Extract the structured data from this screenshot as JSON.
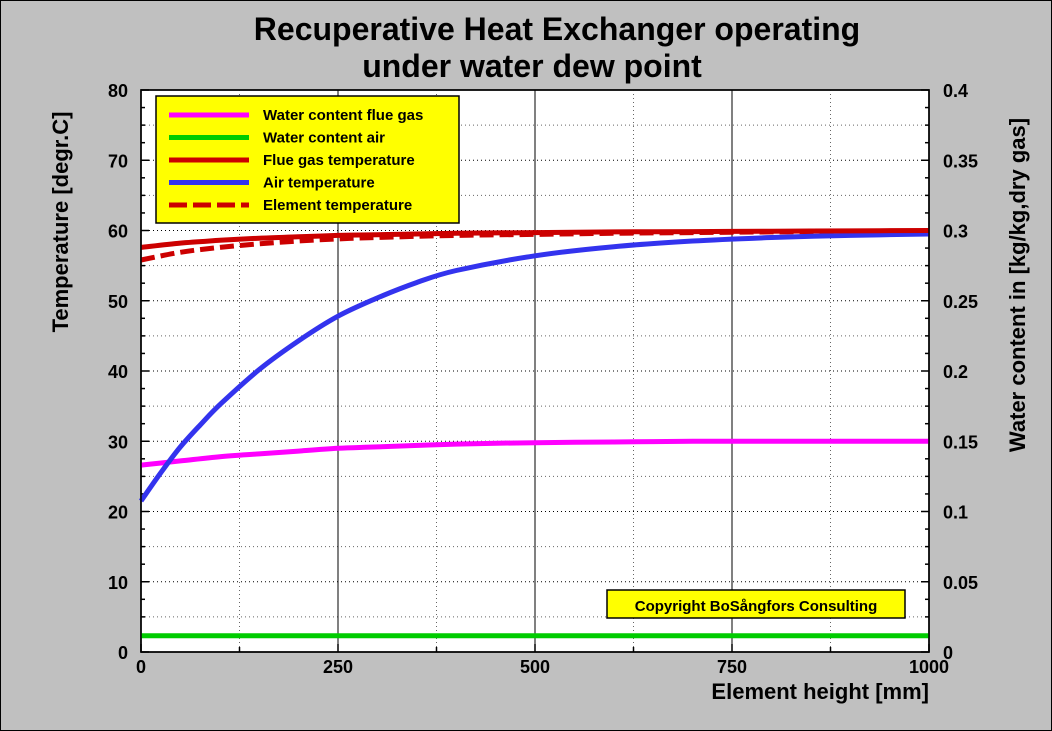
{
  "chart_data": {
    "type": "line",
    "title_line1": "Recuperative Heat Exchanger operating",
    "title_line2": "under water dew point",
    "xlabel": "Element height [mm]",
    "ylabel_left": "Temperature [degr.C]",
    "ylabel_right": "Water content in [kg/kg,dry gas]",
    "xlim": [
      0,
      1000
    ],
    "ylim_left": [
      0,
      80
    ],
    "ylim_right": [
      0,
      0.4
    ],
    "x_ticks": [
      "0",
      "250",
      "500",
      "750",
      "1000"
    ],
    "y_ticks_left": [
      "0",
      "10",
      "20",
      "30",
      "40",
      "50",
      "60",
      "70",
      "80"
    ],
    "y_ticks_right": [
      "0",
      "0.05",
      "0.1",
      "0.15",
      "0.2",
      "0.25",
      "0.3",
      "0.35",
      "0.4"
    ],
    "grid": true,
    "legend_position": "top-left",
    "copyright": "Copyright BoSångfors Consulting",
    "series": [
      {
        "name": "Water content flue gas",
        "axis": "right",
        "color": "#ff00ff",
        "style": "solid",
        "x": [
          0,
          50,
          100,
          150,
          200,
          250,
          300,
          400,
          500,
          600,
          700,
          800,
          900,
          1000
        ],
        "y": [
          0.133,
          0.136,
          0.139,
          0.141,
          0.143,
          0.145,
          0.146,
          0.148,
          0.149,
          0.1495,
          0.15,
          0.15,
          0.15,
          0.15
        ]
      },
      {
        "name": "Water content air",
        "axis": "right",
        "color": "#00cc00",
        "style": "solid",
        "x": [
          0,
          1000
        ],
        "y": [
          0.0115,
          0.0115
        ]
      },
      {
        "name": "Flue gas temperature",
        "axis": "left",
        "color": "#cc0000",
        "style": "solid",
        "x": [
          0,
          50,
          100,
          150,
          200,
          250,
          300,
          400,
          500,
          600,
          700,
          800,
          900,
          1000
        ],
        "y": [
          57.6,
          58.2,
          58.6,
          58.9,
          59.1,
          59.3,
          59.4,
          59.6,
          59.7,
          59.8,
          59.85,
          59.9,
          59.95,
          60.0
        ]
      },
      {
        "name": "Air temperature",
        "axis": "left",
        "color": "#3333ee",
        "style": "solid",
        "x": [
          0,
          25,
          50,
          75,
          100,
          150,
          200,
          250,
          300,
          350,
          400,
          500,
          600,
          700,
          800,
          900,
          1000
        ],
        "y": [
          21.5,
          25.5,
          29.2,
          32.3,
          35.2,
          40.2,
          44.3,
          47.8,
          50.4,
          52.6,
          54.3,
          56.4,
          57.7,
          58.5,
          59.0,
          59.3,
          59.5
        ]
      },
      {
        "name": "Element temperature",
        "axis": "left",
        "color": "#cc0000",
        "style": "dashed",
        "x": [
          0,
          50,
          100,
          150,
          200,
          250,
          300,
          400,
          500,
          600,
          700,
          800,
          900,
          1000
        ],
        "y": [
          55.8,
          56.9,
          57.6,
          58.1,
          58.5,
          58.8,
          59.0,
          59.3,
          59.45,
          59.6,
          59.7,
          59.8,
          59.85,
          59.9
        ]
      }
    ]
  }
}
